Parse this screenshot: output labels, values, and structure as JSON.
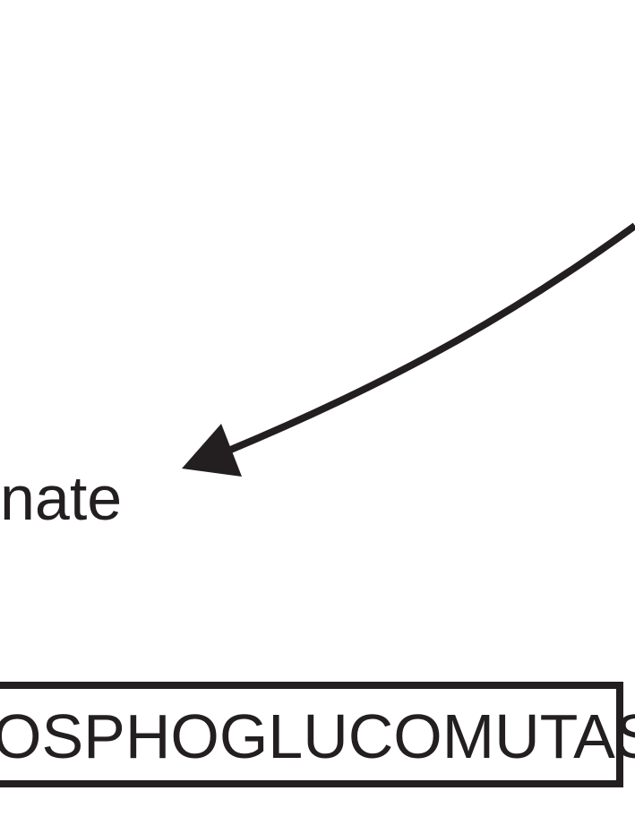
{
  "product_label": "nate",
  "enzyme_label": "OSPHOGLUCOMUTAS",
  "colors": {
    "ink": "#231f20",
    "background": "#ffffff"
  }
}
